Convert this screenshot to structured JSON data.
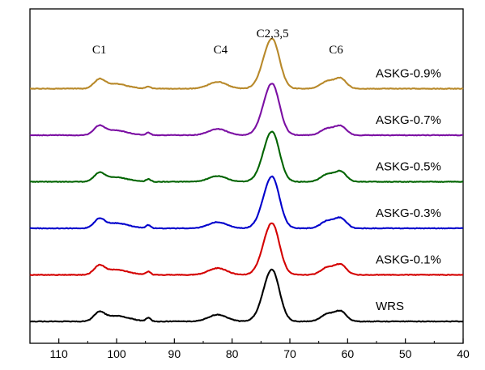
{
  "chart_data": {
    "type": "line",
    "title": "",
    "xlabel": "",
    "ylabel": "",
    "x_reversed": true,
    "xlim": [
      115,
      40
    ],
    "x_ticks": [
      110,
      100,
      90,
      80,
      70,
      60,
      50,
      40
    ],
    "y_ticks_visible": false,
    "grid": false,
    "legend": "labels placed next to each trace (right side)",
    "annotations": [
      {
        "text": "C1",
        "x": 103
      },
      {
        "text": "C4",
        "x": 82
      },
      {
        "text": "C2,3,5",
        "x": 73
      },
      {
        "text": "C6",
        "x": 62
      }
    ],
    "series": [
      {
        "name": "WRS",
        "color": "#000000",
        "offset": 0,
        "peaks": [
          {
            "x": 103,
            "height": 0.17
          },
          {
            "x": 98.5,
            "height": 0.05
          },
          {
            "x": 94.5,
            "height": 0.07
          },
          {
            "x": 82.5,
            "height": 0.13
          },
          {
            "x": 73.1,
            "height": 1.0
          },
          {
            "x": 61.2,
            "height": 0.19
          }
        ]
      },
      {
        "name": "ASKG-0.1%",
        "color": "#d40000",
        "offset": 1,
        "peaks": [
          {
            "x": 103,
            "height": 0.17
          },
          {
            "x": 98.5,
            "height": 0.04
          },
          {
            "x": 94.5,
            "height": 0.06
          },
          {
            "x": 82.5,
            "height": 0.13
          },
          {
            "x": 73.1,
            "height": 1.0
          },
          {
            "x": 61.2,
            "height": 0.19
          }
        ]
      },
      {
        "name": "ASKG-0.3%",
        "color": "#0000cc",
        "offset": 2,
        "peaks": [
          {
            "x": 103,
            "height": 0.17
          },
          {
            "x": 98.5,
            "height": 0.04
          },
          {
            "x": 94.5,
            "height": 0.06
          },
          {
            "x": 82.5,
            "height": 0.12
          },
          {
            "x": 73.1,
            "height": 1.0
          },
          {
            "x": 61.2,
            "height": 0.19
          }
        ]
      },
      {
        "name": "ASKG-0.5%",
        "color": "#006400",
        "offset": 3,
        "peaks": [
          {
            "x": 103,
            "height": 0.16
          },
          {
            "x": 98.5,
            "height": 0.03
          },
          {
            "x": 94.5,
            "height": 0.05
          },
          {
            "x": 82.5,
            "height": 0.11
          },
          {
            "x": 73.1,
            "height": 0.97
          },
          {
            "x": 61.2,
            "height": 0.19
          }
        ]
      },
      {
        "name": "ASKG-0.7%",
        "color": "#7b0fa3",
        "offset": 4,
        "peaks": [
          {
            "x": 103,
            "height": 0.17
          },
          {
            "x": 98.5,
            "height": 0.03
          },
          {
            "x": 94.5,
            "height": 0.05
          },
          {
            "x": 82.5,
            "height": 0.12
          },
          {
            "x": 73.1,
            "height": 1.0
          },
          {
            "x": 61.2,
            "height": 0.17
          }
        ]
      },
      {
        "name": "ASKG-0.9%",
        "color": "#b8892a",
        "offset": 5,
        "peaks": [
          {
            "x": 103,
            "height": 0.17
          },
          {
            "x": 98.5,
            "height": 0.03
          },
          {
            "x": 94.5,
            "height": 0.04
          },
          {
            "x": 82.5,
            "height": 0.13
          },
          {
            "x": 73.1,
            "height": 0.97
          },
          {
            "x": 61.2,
            "height": 0.19
          }
        ]
      }
    ]
  }
}
